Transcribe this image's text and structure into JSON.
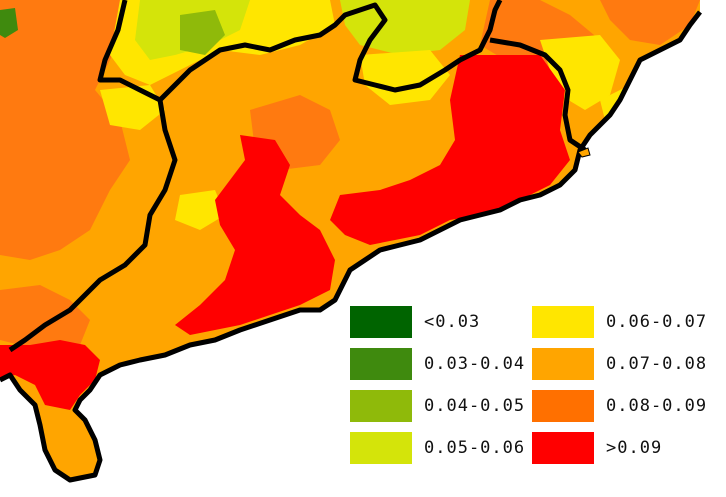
{
  "legend": {
    "items": [
      {
        "label": "<0.03",
        "color": "#006400"
      },
      {
        "label": "0.03-0.04",
        "color": "#3f8a0e"
      },
      {
        "label": "0.04-0.05",
        "color": "#8fba0a"
      },
      {
        "label": "0.05-0.06",
        "color": "#d4e40a"
      },
      {
        "label": "0.06-0.07",
        "color": "#ffe600"
      },
      {
        "label": "0.07-0.08",
        "color": "#ffa500"
      },
      {
        "label": "0.08-0.09",
        "color": "#ff7000"
      },
      {
        "label": ">0.09",
        "color": "#ff0000"
      }
    ]
  },
  "map": {
    "sea_color": "#ffffff",
    "boundary_color": "#000000"
  }
}
